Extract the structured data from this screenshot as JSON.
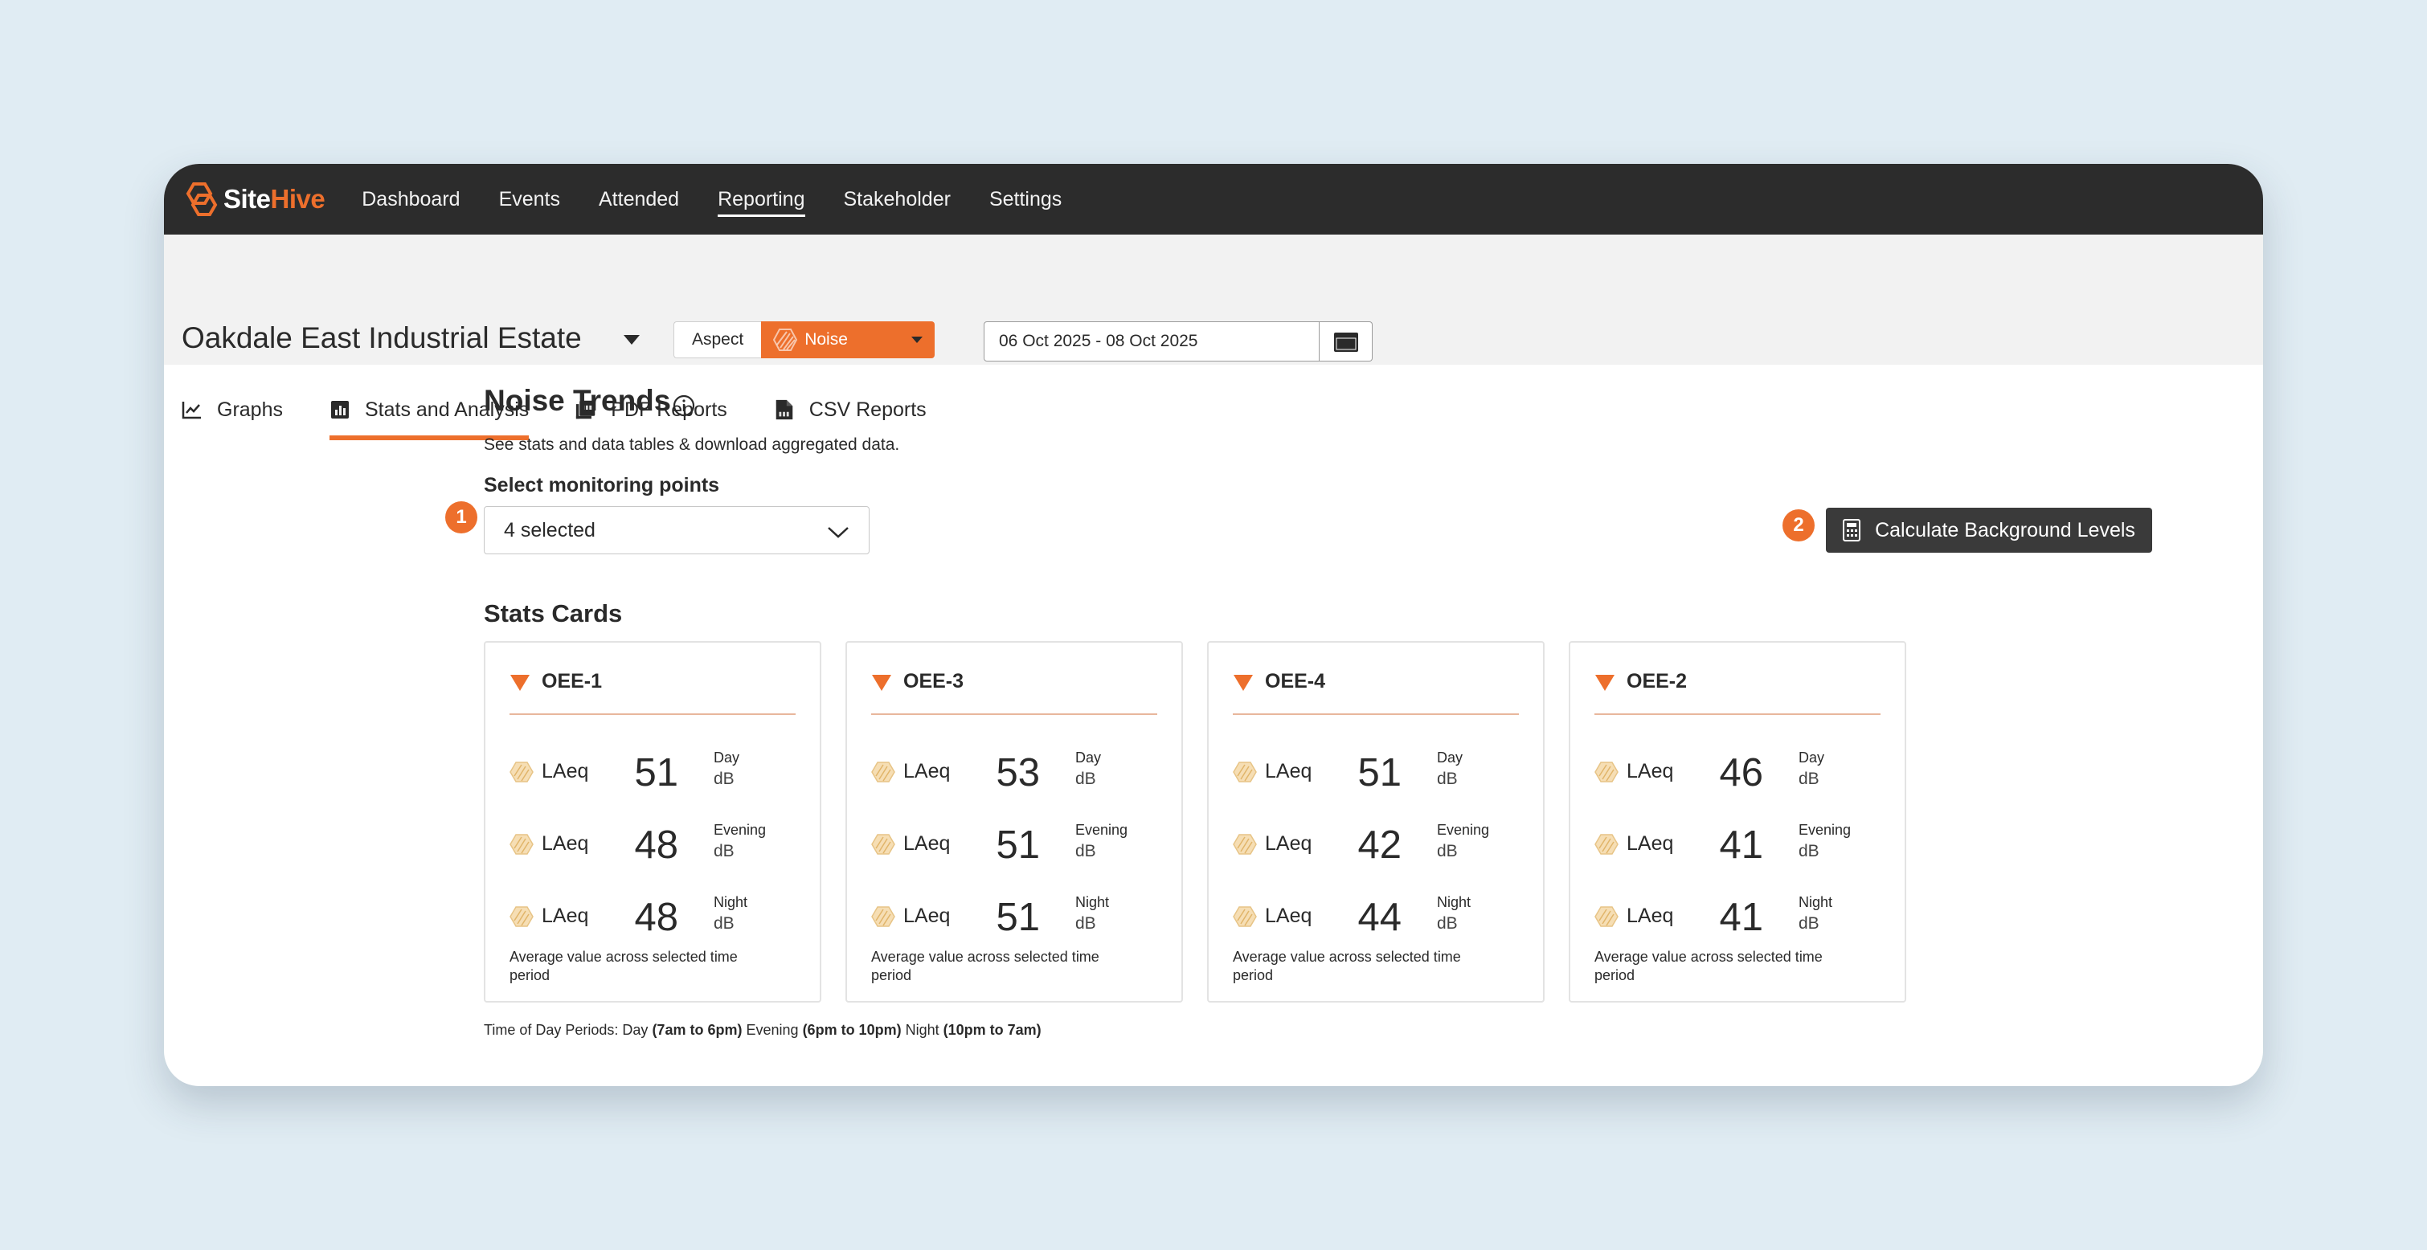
{
  "brand": {
    "part1": "Site",
    "part2": "Hive"
  },
  "nav": [
    {
      "label": "Dashboard"
    },
    {
      "label": "Events"
    },
    {
      "label": "Attended"
    },
    {
      "label": "Reporting"
    },
    {
      "label": "Stakeholder"
    },
    {
      "label": "Settings"
    }
  ],
  "nav_active": "Reporting",
  "site": {
    "name": "Oakdale East Industrial Estate"
  },
  "aspect": {
    "label": "Aspect",
    "value": "Noise"
  },
  "date_range": {
    "value": "06 Oct 2025 - 08 Oct 2025"
  },
  "tabs": [
    {
      "label": "Graphs"
    },
    {
      "label": "Stats and Analysis"
    },
    {
      "label": "PDF Reports"
    },
    {
      "label": "CSV Reports"
    }
  ],
  "tab_active": "Stats and Analysis",
  "page": {
    "title": "Noise Trends",
    "subtitle": "See stats and data tables & download aggregated data.",
    "select_label": "Select monitoring points",
    "select_value": "4 selected",
    "calc_button": "Calculate Background Levels",
    "badges": [
      "1",
      "2"
    ],
    "stats_title": "Stats Cards"
  },
  "cards": [
    {
      "name": "OEE-1",
      "rows": [
        {
          "metric": "LAeq",
          "value": "51",
          "period": "Day",
          "unit": "dB"
        },
        {
          "metric": "LAeq",
          "value": "48",
          "period": "Evening",
          "unit": "dB"
        },
        {
          "metric": "LAeq",
          "value": "48",
          "period": "Night",
          "unit": "dB"
        }
      ],
      "footer": "Average value across selected time period"
    },
    {
      "name": "OEE-3",
      "rows": [
        {
          "metric": "LAeq",
          "value": "53",
          "period": "Day",
          "unit": "dB"
        },
        {
          "metric": "LAeq",
          "value": "51",
          "period": "Evening",
          "unit": "dB"
        },
        {
          "metric": "LAeq",
          "value": "51",
          "period": "Night",
          "unit": "dB"
        }
      ],
      "footer": "Average value across selected time period"
    },
    {
      "name": "OEE-4",
      "rows": [
        {
          "metric": "LAeq",
          "value": "51",
          "period": "Day",
          "unit": "dB"
        },
        {
          "metric": "LAeq",
          "value": "42",
          "period": "Evening",
          "unit": "dB"
        },
        {
          "metric": "LAeq",
          "value": "44",
          "period": "Night",
          "unit": "dB"
        }
      ],
      "footer": "Average value across selected time period"
    },
    {
      "name": "OEE-2",
      "rows": [
        {
          "metric": "LAeq",
          "value": "46",
          "period": "Day",
          "unit": "dB"
        },
        {
          "metric": "LAeq",
          "value": "41",
          "period": "Evening",
          "unit": "dB"
        },
        {
          "metric": "LAeq",
          "value": "41",
          "period": "Night",
          "unit": "dB"
        }
      ],
      "footer": "Average value across selected time period"
    }
  ],
  "time_of_day": {
    "prefix": "Time of Day Periods:",
    "day_label": "Day",
    "day_range": "(7am to 6pm)",
    "evening_label": "Evening",
    "evening_range": "(6pm to 10pm)",
    "night_label": "Night",
    "night_range": "(10pm to 7am)"
  },
  "colors": {
    "accent": "#ed6f2c",
    "nav_bg": "#2c2c2c",
    "button_dark": "#3a3a3a",
    "page_bg": "#e0ecf3"
  }
}
